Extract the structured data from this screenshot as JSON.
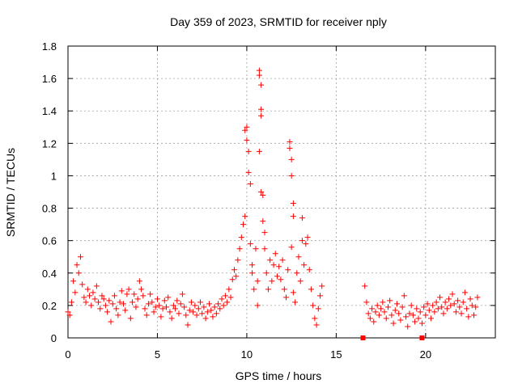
{
  "chart_data": {
    "type": "scatter",
    "title": "Day 359 of 2023, SRMTID for receiver nply",
    "xlabel": "GPS time / hours",
    "ylabel": "SRMTID / TECUs",
    "xlim": [
      0,
      23.9
    ],
    "ylim": [
      0,
      1.8
    ],
    "x_ticks": [
      0,
      5,
      10,
      15,
      20
    ],
    "x_tick_labels": [
      "0",
      "5",
      "10",
      "15",
      "20"
    ],
    "y_ticks": [
      0,
      0.2,
      0.4,
      0.6,
      0.8,
      1.0,
      1.2,
      1.4,
      1.6,
      1.8
    ],
    "y_tick_labels": [
      "0",
      "0.2",
      "0.4",
      "0.6",
      "0.8",
      "1",
      "1.2",
      "1.4",
      "1.6",
      "1.8"
    ],
    "grid": true,
    "marker": "plus",
    "color": "#ff0000",
    "gap_markers": [
      {
        "x": 16.5,
        "y": 0.0
      },
      {
        "x": 19.8,
        "y": 0.0
      }
    ],
    "series": [
      {
        "name": "SRMTID",
        "points": [
          [
            0.0,
            0.16
          ],
          [
            0.1,
            0.14
          ],
          [
            0.2,
            0.22
          ],
          [
            0.3,
            0.35
          ],
          [
            0.4,
            0.28
          ],
          [
            0.5,
            0.45
          ],
          [
            0.6,
            0.4
          ],
          [
            0.7,
            0.5
          ],
          [
            0.8,
            0.33
          ],
          [
            0.9,
            0.25
          ],
          [
            1.0,
            0.22
          ],
          [
            1.1,
            0.3
          ],
          [
            1.2,
            0.26
          ],
          [
            1.3,
            0.2
          ],
          [
            1.4,
            0.28
          ],
          [
            1.5,
            0.24
          ],
          [
            1.6,
            0.32
          ],
          [
            1.7,
            0.22
          ],
          [
            1.8,
            0.18
          ],
          [
            1.9,
            0.26
          ],
          [
            2.0,
            0.24
          ],
          [
            2.1,
            0.2
          ],
          [
            2.2,
            0.16
          ],
          [
            2.3,
            0.23
          ],
          [
            2.4,
            0.1
          ],
          [
            2.5,
            0.21
          ],
          [
            2.6,
            0.26
          ],
          [
            2.7,
            0.18
          ],
          [
            2.8,
            0.14
          ],
          [
            2.9,
            0.22
          ],
          [
            3.0,
            0.29
          ],
          [
            3.1,
            0.21
          ],
          [
            3.2,
            0.17
          ],
          [
            3.3,
            0.27
          ],
          [
            3.4,
            0.3
          ],
          [
            3.5,
            0.12
          ],
          [
            3.6,
            0.22
          ],
          [
            3.7,
            0.27
          ],
          [
            3.8,
            0.19
          ],
          [
            3.9,
            0.24
          ],
          [
            4.0,
            0.35
          ],
          [
            4.1,
            0.3
          ],
          [
            4.2,
            0.26
          ],
          [
            4.3,
            0.18
          ],
          [
            4.4,
            0.14
          ],
          [
            4.5,
            0.21
          ],
          [
            4.6,
            0.27
          ],
          [
            4.7,
            0.22
          ],
          [
            4.8,
            0.16
          ],
          [
            4.9,
            0.19
          ],
          [
            5.0,
            0.24
          ],
          [
            5.1,
            0.2
          ],
          [
            5.2,
            0.13
          ],
          [
            5.3,
            0.18
          ],
          [
            5.4,
            0.23
          ],
          [
            5.5,
            0.19
          ],
          [
            5.6,
            0.25
          ],
          [
            5.7,
            0.16
          ],
          [
            5.8,
            0.12
          ],
          [
            5.9,
            0.2
          ],
          [
            6.0,
            0.18
          ],
          [
            6.1,
            0.23
          ],
          [
            6.2,
            0.15
          ],
          [
            6.3,
            0.21
          ],
          [
            6.4,
            0.27
          ],
          [
            6.5,
            0.19
          ],
          [
            6.6,
            0.14
          ],
          [
            6.7,
            0.08
          ],
          [
            6.8,
            0.17
          ],
          [
            6.9,
            0.22
          ],
          [
            7.0,
            0.16
          ],
          [
            7.1,
            0.2
          ],
          [
            7.2,
            0.14
          ],
          [
            7.3,
            0.18
          ],
          [
            7.4,
            0.22
          ],
          [
            7.5,
            0.15
          ],
          [
            7.6,
            0.19
          ],
          [
            7.7,
            0.12
          ],
          [
            7.8,
            0.16
          ],
          [
            7.9,
            0.21
          ],
          [
            8.0,
            0.17
          ],
          [
            8.1,
            0.13
          ],
          [
            8.2,
            0.19
          ],
          [
            8.3,
            0.15
          ],
          [
            8.4,
            0.21
          ],
          [
            8.5,
            0.18
          ],
          [
            8.6,
            0.24
          ],
          [
            8.7,
            0.2
          ],
          [
            8.8,
            0.26
          ],
          [
            8.9,
            0.22
          ],
          [
            9.0,
            0.3
          ],
          [
            9.1,
            0.25
          ],
          [
            9.2,
            0.36
          ],
          [
            9.3,
            0.42
          ],
          [
            9.4,
            0.38
          ],
          [
            9.5,
            0.48
          ],
          [
            9.6,
            0.55
          ],
          [
            9.7,
            0.62
          ],
          [
            9.8,
            0.7
          ],
          [
            9.9,
            0.75
          ],
          [
            9.9,
            1.28
          ],
          [
            10.0,
            1.3
          ],
          [
            10.0,
            1.22
          ],
          [
            10.1,
            1.15
          ],
          [
            10.1,
            1.02
          ],
          [
            10.2,
            0.95
          ],
          [
            10.2,
            0.58
          ],
          [
            10.3,
            0.45
          ],
          [
            10.3,
            0.4
          ],
          [
            10.4,
            0.3
          ],
          [
            10.5,
            0.55
          ],
          [
            10.6,
            0.35
          ],
          [
            10.6,
            0.2
          ],
          [
            10.7,
            1.65
          ],
          [
            10.7,
            1.62
          ],
          [
            10.8,
            1.56
          ],
          [
            10.8,
            1.41
          ],
          [
            10.8,
            1.37
          ],
          [
            10.7,
            1.15
          ],
          [
            10.8,
            0.9
          ],
          [
            10.9,
            0.72
          ],
          [
            10.9,
            0.88
          ],
          [
            11.0,
            0.55
          ],
          [
            11.0,
            0.65
          ],
          [
            11.1,
            0.4
          ],
          [
            11.2,
            0.3
          ],
          [
            11.3,
            0.48
          ],
          [
            11.4,
            0.35
          ],
          [
            11.5,
            0.45
          ],
          [
            11.6,
            0.52
          ],
          [
            11.7,
            0.38
          ],
          [
            11.8,
            0.44
          ],
          [
            11.9,
            0.36
          ],
          [
            12.0,
            0.48
          ],
          [
            12.1,
            0.3
          ],
          [
            12.2,
            0.25
          ],
          [
            12.3,
            0.42
          ],
          [
            12.4,
            1.21
          ],
          [
            12.4,
            1.17
          ],
          [
            12.5,
            1.1
          ],
          [
            12.5,
            1.0
          ],
          [
            12.6,
            0.83
          ],
          [
            12.6,
            0.75
          ],
          [
            12.5,
            0.56
          ],
          [
            12.6,
            0.28
          ],
          [
            12.7,
            0.22
          ],
          [
            12.8,
            0.4
          ],
          [
            12.9,
            0.5
          ],
          [
            13.0,
            0.35
          ],
          [
            13.1,
            0.6
          ],
          [
            13.1,
            0.74
          ],
          [
            13.2,
            0.45
          ],
          [
            13.3,
            0.58
          ],
          [
            13.4,
            0.62
          ],
          [
            13.5,
            0.42
          ],
          [
            13.6,
            0.3
          ],
          [
            13.7,
            0.2
          ],
          [
            13.8,
            0.12
          ],
          [
            13.9,
            0.08
          ],
          [
            14.0,
            0.18
          ],
          [
            14.1,
            0.26
          ],
          [
            14.2,
            0.32
          ],
          [
            16.6,
            0.32
          ],
          [
            16.7,
            0.22
          ],
          [
            16.8,
            0.15
          ],
          [
            16.9,
            0.12
          ],
          [
            17.0,
            0.18
          ],
          [
            17.1,
            0.1
          ],
          [
            17.2,
            0.16
          ],
          [
            17.3,
            0.2
          ],
          [
            17.4,
            0.14
          ],
          [
            17.5,
            0.18
          ],
          [
            17.6,
            0.22
          ],
          [
            17.7,
            0.16
          ],
          [
            17.8,
            0.12
          ],
          [
            17.9,
            0.19
          ],
          [
            18.0,
            0.23
          ],
          [
            18.1,
            0.14
          ],
          [
            18.2,
            0.09
          ],
          [
            18.3,
            0.17
          ],
          [
            18.4,
            0.21
          ],
          [
            18.5,
            0.15
          ],
          [
            18.6,
            0.11
          ],
          [
            18.7,
            0.19
          ],
          [
            18.8,
            0.26
          ],
          [
            18.9,
            0.13
          ],
          [
            19.0,
            0.07
          ],
          [
            19.1,
            0.15
          ],
          [
            19.2,
            0.2
          ],
          [
            19.3,
            0.14
          ],
          [
            19.4,
            0.1
          ],
          [
            19.5,
            0.18
          ],
          [
            19.6,
            0.12
          ],
          [
            19.7,
            0.16
          ],
          [
            19.8,
            0.09
          ],
          [
            19.9,
            0.19
          ],
          [
            20.0,
            0.14
          ],
          [
            20.1,
            0.21
          ],
          [
            20.2,
            0.17
          ],
          [
            20.3,
            0.12
          ],
          [
            20.4,
            0.2
          ],
          [
            20.5,
            0.16
          ],
          [
            20.6,
            0.22
          ],
          [
            20.7,
            0.18
          ],
          [
            20.8,
            0.25
          ],
          [
            20.9,
            0.19
          ],
          [
            21.0,
            0.15
          ],
          [
            21.1,
            0.22
          ],
          [
            21.2,
            0.18
          ],
          [
            21.3,
            0.24
          ],
          [
            21.4,
            0.2
          ],
          [
            21.5,
            0.27
          ],
          [
            21.6,
            0.21
          ],
          [
            21.7,
            0.16
          ],
          [
            21.8,
            0.23
          ],
          [
            21.9,
            0.19
          ],
          [
            22.0,
            0.15
          ],
          [
            22.1,
            0.22
          ],
          [
            22.2,
            0.28
          ],
          [
            22.3,
            0.18
          ],
          [
            22.4,
            0.13
          ],
          [
            22.5,
            0.24
          ],
          [
            22.6,
            0.2
          ],
          [
            22.7,
            0.14
          ],
          [
            22.8,
            0.19
          ],
          [
            22.9,
            0.25
          ]
        ]
      }
    ]
  }
}
